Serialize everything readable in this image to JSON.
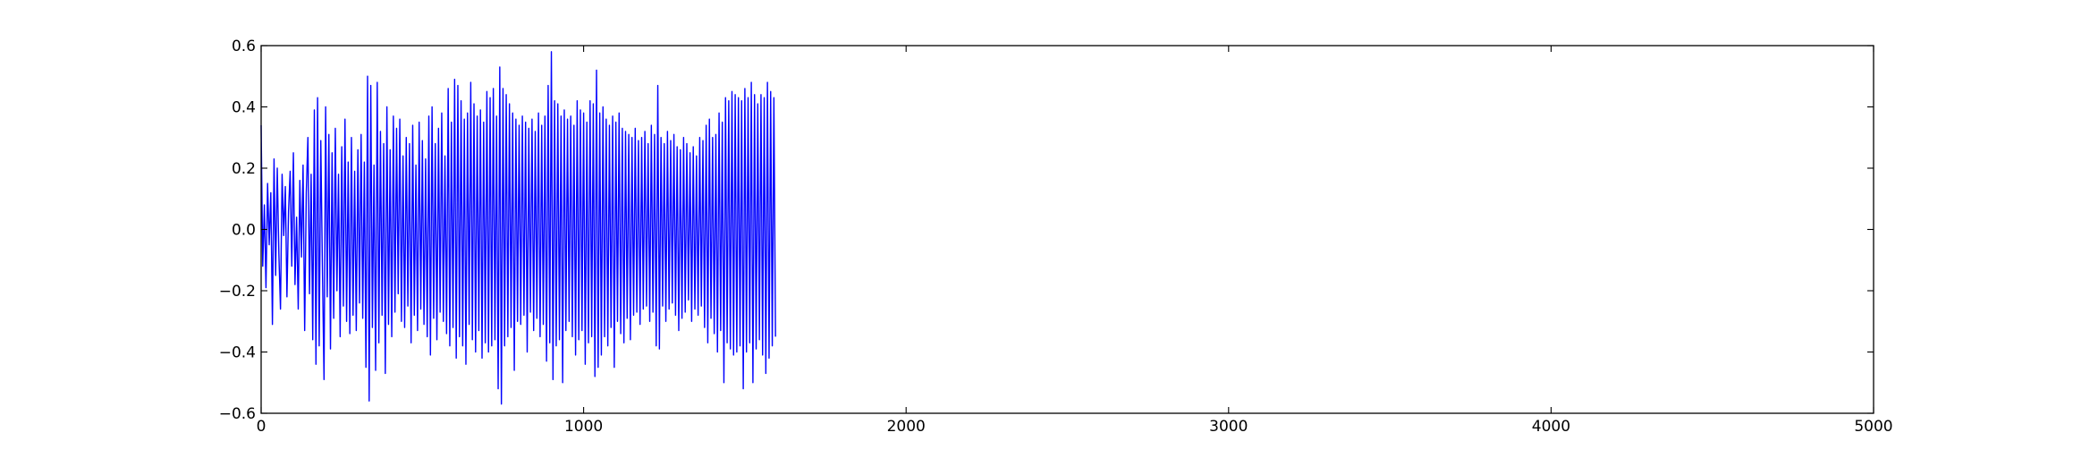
{
  "chart_data": {
    "type": "line",
    "title": "",
    "xlabel": "",
    "ylabel": "",
    "xlim": [
      0,
      5000
    ],
    "ylim": [
      -0.6,
      0.6
    ],
    "grid": false,
    "legend": "none",
    "x_ticks": [
      0,
      1000,
      2000,
      3000,
      4000,
      5000
    ],
    "x_tick_labels": [
      "0",
      "1000",
      "2000",
      "3000",
      "4000",
      "5000"
    ],
    "y_ticks": [
      -0.6,
      -0.4,
      -0.2,
      0.0,
      0.2,
      0.4,
      0.6
    ],
    "y_tick_labels": [
      "−0.6",
      "−0.4",
      "−0.2",
      "0.0",
      "0.2",
      "0.4",
      "0.6"
    ],
    "series": [
      {
        "color": "#0000ff",
        "x_start": 0,
        "x_step": 5,
        "values": [
          0.34,
          -0.12,
          0.08,
          -0.19,
          0.15,
          -0.05,
          0.12,
          -0.31,
          0.23,
          -0.15,
          0.2,
          -0.08,
          -0.26,
          0.18,
          -0.02,
          0.14,
          -0.22,
          0.06,
          0.19,
          -0.12,
          0.25,
          -0.18,
          0.04,
          -0.26,
          0.16,
          -0.09,
          0.21,
          -0.33,
          0.12,
          0.3,
          -0.21,
          0.18,
          -0.36,
          0.39,
          -0.44,
          0.43,
          -0.38,
          0.29,
          -0.12,
          -0.49,
          0.4,
          -0.22,
          0.31,
          -0.39,
          0.25,
          -0.29,
          0.33,
          -0.2,
          0.18,
          -0.35,
          0.27,
          -0.25,
          0.36,
          -0.3,
          0.22,
          -0.34,
          0.3,
          -0.28,
          0.19,
          -0.33,
          0.26,
          -0.24,
          0.31,
          -0.29,
          0.22,
          -0.45,
          0.5,
          -0.56,
          0.47,
          -0.32,
          0.21,
          -0.46,
          0.48,
          -0.37,
          0.32,
          -0.28,
          0.28,
          -0.47,
          0.4,
          -0.31,
          0.26,
          -0.35,
          0.37,
          -0.27,
          0.33,
          -0.21,
          0.36,
          -0.3,
          0.24,
          -0.32,
          0.3,
          -0.25,
          0.28,
          -0.37,
          0.34,
          -0.28,
          0.21,
          -0.33,
          0.35,
          -0.26,
          0.29,
          -0.31,
          0.23,
          -0.35,
          0.37,
          -0.41,
          0.4,
          -0.29,
          0.28,
          -0.36,
          0.33,
          -0.27,
          0.38,
          -0.3,
          0.24,
          -0.34,
          0.46,
          -0.38,
          0.35,
          -0.32,
          0.49,
          -0.42,
          0.47,
          -0.35,
          0.42,
          -0.38,
          0.36,
          -0.44,
          0.38,
          -0.31,
          0.48,
          -0.36,
          0.41,
          -0.4,
          0.37,
          -0.33,
          0.39,
          -0.42,
          0.35,
          -0.37,
          0.45,
          -0.4,
          0.43,
          -0.38,
          0.46,
          -0.36,
          0.37,
          -0.52,
          0.53,
          -0.57,
          0.46,
          -0.38,
          0.44,
          -0.35,
          0.41,
          -0.32,
          0.38,
          -0.46,
          0.36,
          -0.3,
          0.34,
          -0.31,
          0.37,
          -0.28,
          0.35,
          -0.4,
          0.33,
          -0.27,
          0.36,
          -0.33,
          0.32,
          -0.29,
          0.38,
          -0.35,
          0.34,
          -0.31,
          0.37,
          -0.43,
          0.47,
          -0.37,
          0.58,
          -0.49,
          0.42,
          -0.38,
          0.41,
          -0.36,
          0.37,
          -0.5,
          0.39,
          -0.33,
          0.36,
          -0.3,
          0.37,
          -0.35,
          0.34,
          -0.41,
          0.42,
          -0.36,
          0.39,
          -0.33,
          0.38,
          -0.44,
          0.35,
          -0.37,
          0.42,
          -0.35,
          0.41,
          -0.48,
          0.52,
          -0.45,
          0.38,
          -0.41,
          0.4,
          -0.35,
          0.36,
          -0.38,
          0.34,
          -0.32,
          0.37,
          -0.45,
          0.35,
          -0.3,
          0.38,
          -0.34,
          0.33,
          -0.37,
          0.32,
          -0.29,
          0.31,
          -0.36,
          0.3,
          -0.28,
          0.33,
          -0.27,
          0.29,
          -0.31,
          0.3,
          -0.26,
          0.32,
          -0.25,
          0.28,
          -0.3,
          0.34,
          -0.27,
          0.31,
          -0.38,
          0.47,
          -0.39,
          0.3,
          -0.25,
          0.28,
          -0.3,
          0.32,
          -0.26,
          0.29,
          -0.24,
          0.31,
          -0.28,
          0.27,
          -0.33,
          0.26,
          -0.29,
          0.3,
          -0.27,
          0.28,
          -0.23,
          0.25,
          -0.3,
          0.27,
          -0.26,
          0.24,
          -0.28,
          0.3,
          -0.25,
          0.29,
          -0.32,
          0.34,
          -0.37,
          0.36,
          -0.29,
          0.3,
          -0.34,
          0.31,
          -0.4,
          0.38,
          -0.33,
          0.35,
          -0.5,
          0.43,
          -0.37,
          0.42,
          -0.39,
          0.45,
          -0.41,
          0.44,
          -0.4,
          0.43,
          -0.38,
          0.42,
          -0.52,
          0.46,
          -0.4,
          0.43,
          -0.37,
          0.48,
          -0.5,
          0.44,
          -0.39,
          0.41,
          -0.36,
          0.44,
          -0.41,
          0.43,
          -0.47,
          0.48,
          -0.42,
          0.45,
          -0.38,
          0.43,
          -0.35
        ]
      }
    ]
  }
}
